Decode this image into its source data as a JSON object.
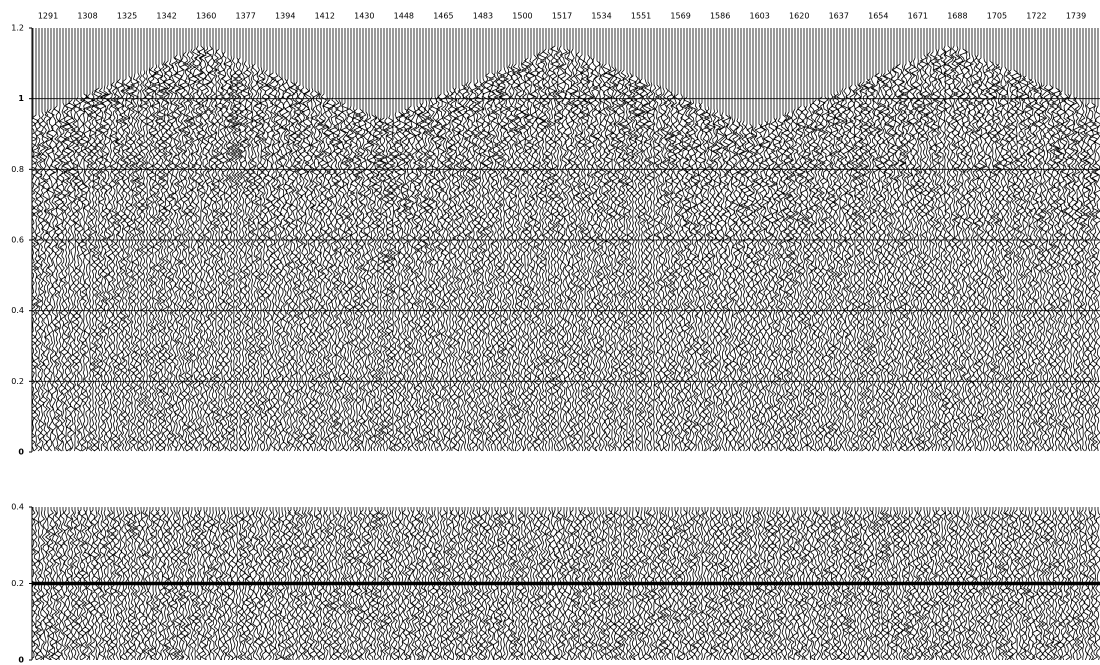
{
  "panels": [
    {
      "xlabels": [
        "1291",
        "1308",
        "1325",
        "1342",
        "1360",
        "1377",
        "1394",
        "1412",
        "1430",
        "1448",
        "1465",
        "1483",
        "1500",
        "1517",
        "1534",
        "1551",
        "1569",
        "1586",
        "1603",
        "1620",
        "1637",
        "1654",
        "1671",
        "1688",
        "1705",
        "1722",
        "1739"
      ],
      "ylim": [
        0,
        1.2
      ],
      "yticks": [
        0,
        0.2,
        0.4,
        0.6,
        0.8,
        1,
        1.2
      ]
    },
    {
      "ylim": [
        0,
        0.4
      ],
      "yticks": [
        0,
        0.2,
        0.4
      ]
    }
  ]
}
